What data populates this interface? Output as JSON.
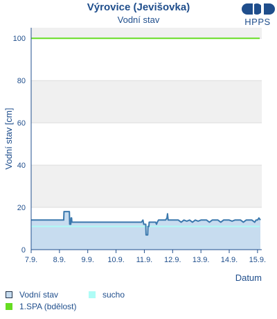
{
  "header": {
    "title": "Výrovice (Jevišovka)",
    "subtitle": "Vodní stav",
    "logo_text": "HPPS"
  },
  "colors": {
    "axis": "#1f4e8c",
    "water_line": "#3a78ad",
    "water_fill": "#c7dcef",
    "spa1": "#66dd22",
    "sucho": "#aefcf6",
    "band": "#f0f0f0"
  },
  "legend": {
    "items": [
      {
        "label": "Vodní stav",
        "color": "#c7dcef",
        "border": "#1f2f45"
      },
      {
        "label": "sucho",
        "color": "#aefcf6",
        "border": "#aefcf6"
      },
      {
        "label": "1.SPA (bdělost)",
        "color": "#66dd22",
        "border": "#66dd22"
      }
    ]
  },
  "chart_data": {
    "type": "area",
    "ylabel": "Vodní stav [cm]",
    "xlabel": "Datum",
    "ylim": [
      0,
      105
    ],
    "yticks": [
      0,
      20,
      40,
      60,
      80,
      100
    ],
    "xlim": [
      7,
      15.15
    ],
    "xticks": [
      {
        "v": 7,
        "label": "7.9."
      },
      {
        "v": 8,
        "label": "8.9."
      },
      {
        "v": 9,
        "label": "9.9."
      },
      {
        "v": 10,
        "label": "10.9."
      },
      {
        "v": 11,
        "label": "11.9."
      },
      {
        "v": 12,
        "label": "12.9."
      },
      {
        "v": 13,
        "label": "13.9."
      },
      {
        "v": 14,
        "label": "14.9."
      },
      {
        "v": 15,
        "label": "15.9."
      }
    ],
    "thresholds": [
      {
        "name": "1.SPA (bdělost)",
        "value": 100
      },
      {
        "name": "sucho",
        "value": 11
      }
    ],
    "series": [
      {
        "name": "Vodní stav",
        "points": [
          [
            7.0,
            14
          ],
          [
            8.05,
            14
          ],
          [
            8.15,
            14
          ],
          [
            8.16,
            18
          ],
          [
            8.35,
            18
          ],
          [
            8.36,
            12
          ],
          [
            8.4,
            12
          ],
          [
            8.41,
            15
          ],
          [
            8.43,
            15
          ],
          [
            8.44,
            13
          ],
          [
            9.0,
            13
          ],
          [
            10.0,
            13
          ],
          [
            10.9,
            13
          ],
          [
            10.95,
            14
          ],
          [
            10.98,
            12
          ],
          [
            11.05,
            12
          ],
          [
            11.06,
            7
          ],
          [
            11.12,
            7
          ],
          [
            11.13,
            11
          ],
          [
            11.16,
            11
          ],
          [
            11.17,
            13
          ],
          [
            11.4,
            13
          ],
          [
            11.43,
            12
          ],
          [
            11.46,
            13
          ],
          [
            11.5,
            14
          ],
          [
            11.75,
            14
          ],
          [
            11.8,
            15
          ],
          [
            11.82,
            17
          ],
          [
            11.84,
            14
          ],
          [
            12.0,
            14
          ],
          [
            12.2,
            14
          ],
          [
            12.3,
            13
          ],
          [
            12.4,
            14
          ],
          [
            12.5,
            13.5
          ],
          [
            12.6,
            14
          ],
          [
            12.7,
            13
          ],
          [
            12.8,
            14
          ],
          [
            12.9,
            13.5
          ],
          [
            13.0,
            14
          ],
          [
            13.2,
            14
          ],
          [
            13.3,
            13
          ],
          [
            13.4,
            14
          ],
          [
            13.6,
            14
          ],
          [
            13.7,
            13
          ],
          [
            13.8,
            14
          ],
          [
            14.0,
            14
          ],
          [
            14.1,
            13.5
          ],
          [
            14.2,
            14
          ],
          [
            14.4,
            14
          ],
          [
            14.5,
            13
          ],
          [
            14.6,
            14
          ],
          [
            14.8,
            14
          ],
          [
            14.9,
            13
          ],
          [
            14.95,
            14
          ],
          [
            15.0,
            14
          ],
          [
            15.05,
            15
          ],
          [
            15.1,
            14
          ]
        ]
      }
    ],
    "grid": true,
    "legend": "bottom"
  }
}
